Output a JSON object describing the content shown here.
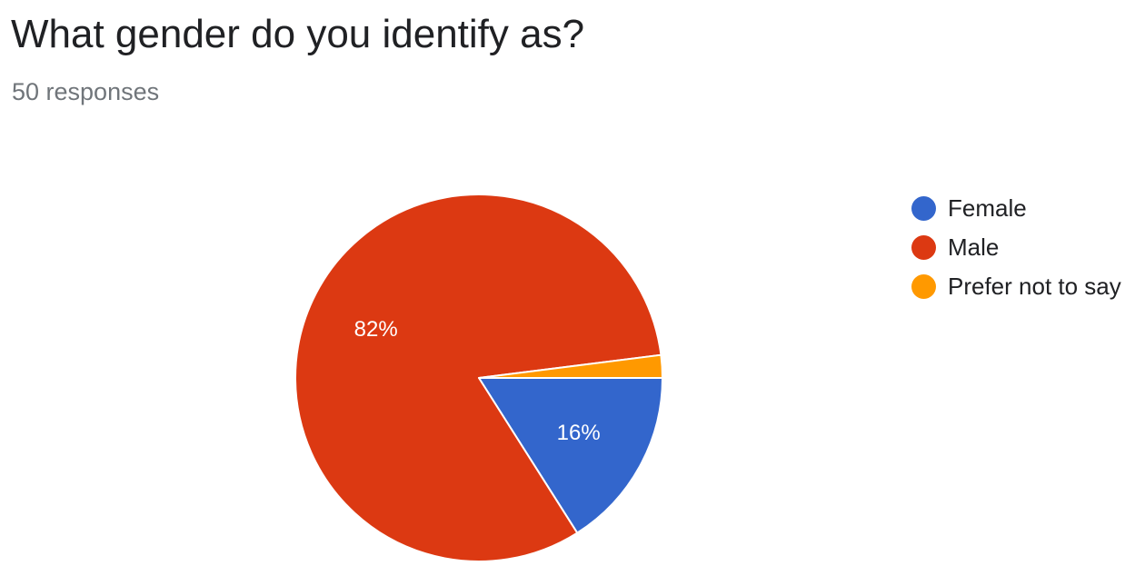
{
  "question": {
    "title": "What gender do you identify as?",
    "responses_label": "50 responses"
  },
  "chart_data": {
    "type": "pie",
    "title": "What gender do you identify as?",
    "subtitle": "50 responses",
    "legend_position": "right",
    "slices": [
      {
        "label": "Female",
        "value": 8,
        "percent_label": "16%",
        "color": "#3366cc"
      },
      {
        "label": "Male",
        "value": 41,
        "percent_label": "82%",
        "color": "#dc3912"
      },
      {
        "label": "Prefer not to say",
        "value": 1,
        "percent_label": "",
        "color": "#ff9900"
      }
    ]
  }
}
